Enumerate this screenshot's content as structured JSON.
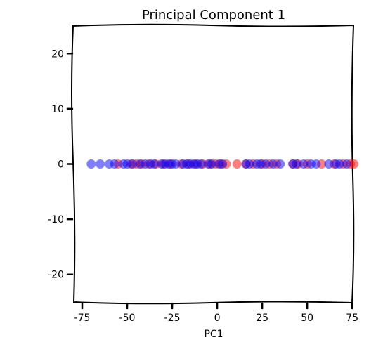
{
  "chart_data": {
    "type": "scatter",
    "title": "Principal Component 1",
    "xlabel": "PC1",
    "ylabel": "",
    "xlim": [
      -75,
      80
    ],
    "ylim": [
      -25,
      25
    ],
    "xticks": [
      -75,
      -50,
      -25,
      0,
      25,
      50,
      75
    ],
    "yticks": [
      20,
      10,
      0,
      -10,
      -20
    ],
    "grid": false,
    "series": [
      {
        "color": "#ff0000",
        "opacity": 0.5,
        "x": [
          -55,
          -48,
          -45,
          -42,
          -38,
          -34,
          -30,
          -26,
          -20,
          -16,
          -12,
          -8,
          -4,
          -1,
          2,
          5,
          11,
          16,
          20,
          25,
          29,
          33,
          42,
          45,
          50,
          58,
          65,
          70,
          74,
          76
        ],
        "y": [
          0,
          0,
          0,
          0,
          0,
          0,
          0,
          0,
          0,
          0,
          0,
          0,
          0,
          0,
          0,
          0,
          0,
          0,
          0,
          0,
          0,
          0,
          0,
          0,
          0,
          0,
          0,
          0,
          0,
          0
        ]
      },
      {
        "color": "#0000ff",
        "opacity": 0.5,
        "x": [
          -70,
          -65,
          -60,
          -57,
          -52,
          -50,
          -47,
          -43,
          -40,
          -37,
          -35,
          -31,
          -29,
          -27,
          -25,
          -23,
          -19,
          -17,
          -15,
          -13,
          -11,
          -9,
          -5,
          -3,
          1,
          3,
          16,
          18,
          22,
          24,
          27,
          31,
          35,
          42,
          44,
          48,
          52,
          55,
          62,
          66,
          68,
          72
        ],
        "y": [
          0,
          0,
          0,
          0,
          0,
          0,
          0,
          0,
          0,
          0,
          0,
          0,
          0,
          0,
          0,
          0,
          0,
          0,
          0,
          0,
          0,
          0,
          0,
          0,
          0,
          0,
          0,
          0,
          0,
          0,
          0,
          0,
          0,
          0,
          0,
          0,
          0,
          0,
          0,
          0,
          0,
          0
        ]
      }
    ]
  }
}
